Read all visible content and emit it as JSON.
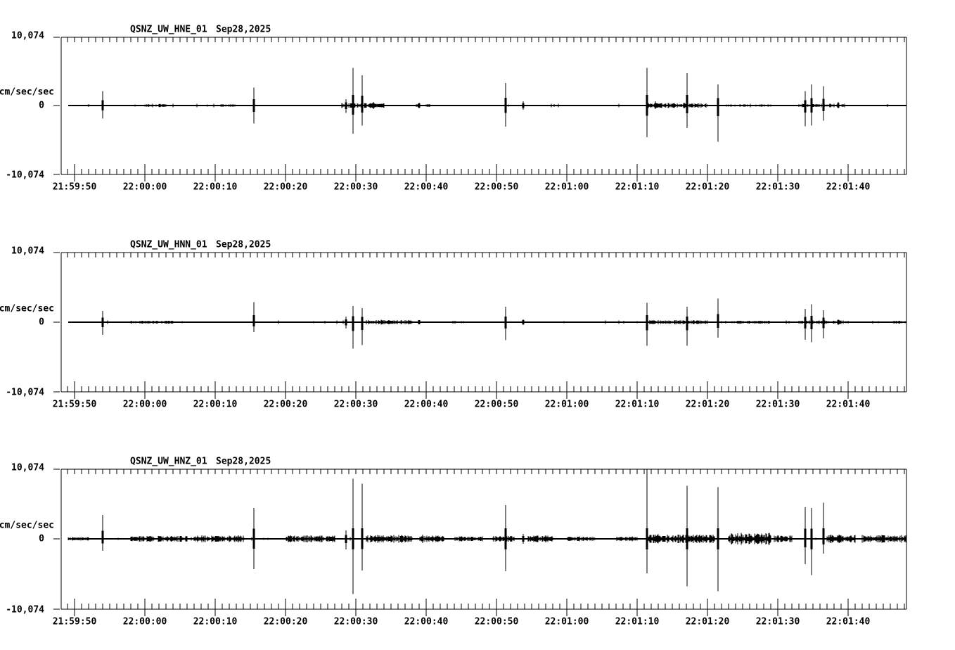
{
  "page": {
    "background": "#ffffff",
    "foreground": "#000000",
    "description": "Three-panel seismogram webicorder display for station QSNZ (UW network), channels HNE, HNN, HNZ"
  },
  "chart_data": {
    "type": "line",
    "kind": "seismogram-multipanel",
    "date": "Sep28,2025",
    "ylabel": "cm/sec/sec",
    "full_scale": 10074,
    "ytick_labels": [
      "10,074",
      "0",
      "-10,074"
    ],
    "ytick_values": [
      10074,
      0,
      -10074
    ],
    "xtick_labels": [
      "21:59:50",
      "22:00:00",
      "22:00:10",
      "22:00:20",
      "22:00:30",
      "22:00:40",
      "22:00:50",
      "22:01:00",
      "22:01:10",
      "22:01:20",
      "22:01:30",
      "22:01:40"
    ],
    "xtick_seconds": [
      0,
      10,
      20,
      30,
      40,
      50,
      60,
      70,
      80,
      90,
      100,
      110
    ],
    "time_window_seconds": [
      -1.9,
      118.2
    ],
    "grid": false,
    "legend": false,
    "spike_format": "[t_seconds_after_21:59:50, up_fraction_of_full_scale, down_fraction_of_full_scale]",
    "noise_format": "[t_start, t_end, amplitude_fraction_of_full_scale]",
    "panels": [
      {
        "station": "QSNZ_UW_HNE_01",
        "channel": "HNE",
        "date": "Sep28,2025",
        "spikes": [
          [
            4.0,
            0.21,
            0.19
          ],
          [
            25.5,
            0.26,
            0.26
          ],
          [
            38.6,
            0.09,
            0.11
          ],
          [
            39.6,
            0.55,
            0.41
          ],
          [
            40.9,
            0.44,
            0.29
          ],
          [
            42.5,
            0.05,
            0.05
          ],
          [
            49.0,
            0.04,
            0.04
          ],
          [
            61.3,
            0.33,
            0.31
          ],
          [
            63.8,
            0.06,
            0.06
          ],
          [
            81.4,
            0.55,
            0.46
          ],
          [
            82.6,
            0.06,
            0.05
          ],
          [
            87.1,
            0.47,
            0.33
          ],
          [
            91.5,
            0.31,
            0.53
          ],
          [
            103.9,
            0.21,
            0.3
          ],
          [
            104.8,
            0.31,
            0.29
          ],
          [
            106.5,
            0.28,
            0.22
          ],
          [
            108.6,
            0.05,
            0.04
          ]
        ],
        "noise": [
          [
            10,
            13,
            0.02
          ],
          [
            20,
            23,
            0.015
          ],
          [
            38,
            44,
            0.03
          ],
          [
            48.5,
            50.5,
            0.02
          ],
          [
            81.5,
            90,
            0.03
          ],
          [
            92,
            99,
            0.015
          ],
          [
            103,
            109.5,
            0.022
          ],
          [
            112,
            116,
            0.012
          ]
        ]
      },
      {
        "station": "QSNZ_UW_HNN_01",
        "channel": "HNN",
        "date": "Sep28,2025",
        "spikes": [
          [
            4.0,
            0.16,
            0.18
          ],
          [
            25.5,
            0.29,
            0.14
          ],
          [
            38.6,
            0.08,
            0.09
          ],
          [
            39.6,
            0.23,
            0.38
          ],
          [
            40.9,
            0.2,
            0.33
          ],
          [
            49.0,
            0.03,
            0.03
          ],
          [
            61.3,
            0.22,
            0.26
          ],
          [
            63.8,
            0.04,
            0.04
          ],
          [
            81.4,
            0.28,
            0.34
          ],
          [
            87.1,
            0.22,
            0.34
          ],
          [
            91.5,
            0.34,
            0.22
          ],
          [
            103.9,
            0.19,
            0.25
          ],
          [
            104.8,
            0.26,
            0.29
          ],
          [
            106.5,
            0.17,
            0.23
          ],
          [
            108.6,
            0.04,
            0.04
          ]
        ],
        "noise": [
          [
            8,
            14,
            0.018
          ],
          [
            41.5,
            48,
            0.028
          ],
          [
            54,
            56,
            0.015
          ],
          [
            81.5,
            90,
            0.025
          ],
          [
            93.5,
            99,
            0.018
          ],
          [
            103,
            110,
            0.02
          ],
          [
            116.5,
            118.2,
            0.02
          ]
        ]
      },
      {
        "station": "QSNZ_UW_HNZ_01",
        "channel": "HNZ",
        "date": "Sep28,2025",
        "spikes": [
          [
            4.0,
            0.34,
            0.17
          ],
          [
            25.5,
            0.44,
            0.43
          ],
          [
            38.6,
            0.12,
            0.15
          ],
          [
            39.6,
            0.86,
            0.79
          ],
          [
            40.9,
            0.79,
            0.45
          ],
          [
            49.5,
            0.06,
            0.06
          ],
          [
            55.0,
            0.04,
            0.04
          ],
          [
            61.3,
            0.48,
            0.46
          ],
          [
            63.8,
            0.07,
            0.07
          ],
          [
            67.0,
            0.05,
            0.05
          ],
          [
            81.4,
            1.0,
            0.49
          ],
          [
            87.1,
            0.76,
            0.68
          ],
          [
            91.5,
            0.74,
            0.75
          ],
          [
            100.0,
            0.05,
            0.05
          ],
          [
            103.9,
            0.45,
            0.36
          ],
          [
            104.8,
            0.44,
            0.52
          ],
          [
            106.5,
            0.52,
            0.21
          ]
        ],
        "noise": [
          [
            -1,
            2,
            0.02
          ],
          [
            8,
            16,
            0.035
          ],
          [
            17,
            24,
            0.04
          ],
          [
            30,
            37,
            0.04
          ],
          [
            41.5,
            48,
            0.045
          ],
          [
            49,
            52.5,
            0.04
          ],
          [
            54,
            58,
            0.03
          ],
          [
            59.5,
            62.5,
            0.035
          ],
          [
            64.5,
            68,
            0.04
          ],
          [
            70,
            74,
            0.028
          ],
          [
            77,
            80,
            0.028
          ],
          [
            81.5,
            91,
            0.055
          ],
          [
            93,
            99,
            0.07
          ],
          [
            99.5,
            102,
            0.04
          ],
          [
            107,
            111,
            0.05
          ],
          [
            112,
            118.2,
            0.045
          ]
        ]
      }
    ]
  }
}
